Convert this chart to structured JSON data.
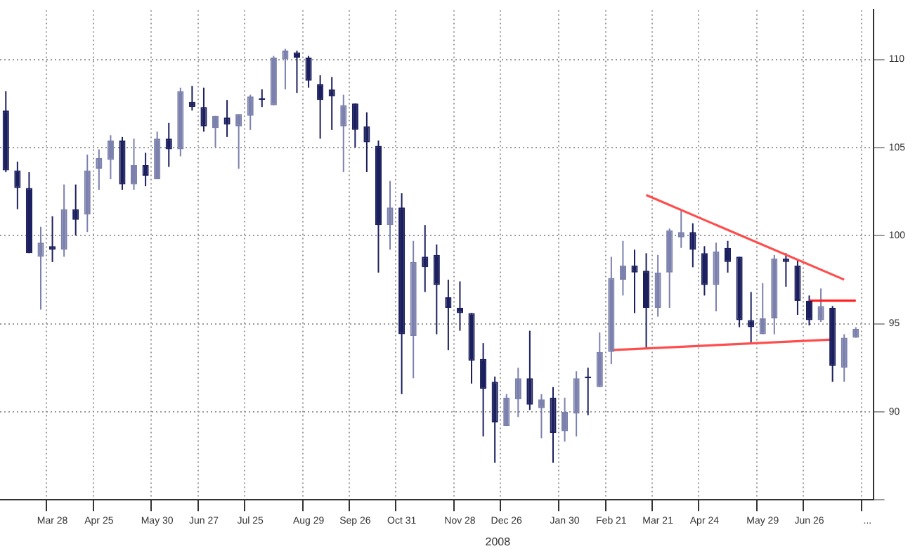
{
  "chart_data": {
    "type": "candlestick",
    "categories": [
      null,
      null,
      null,
      null,
      "Mar 28",
      null,
      null,
      null,
      "Apr 25",
      null,
      null,
      null,
      null,
      "May 30",
      null,
      null,
      null,
      "Jun 27",
      null,
      null,
      null,
      "Jul 25",
      null,
      null,
      null,
      null,
      "Aug 29",
      null,
      null,
      null,
      "Sep 26",
      null,
      null,
      null,
      "Oct 31",
      null,
      null,
      null,
      null,
      "Nov 28",
      null,
      null,
      null,
      "Dec 26",
      null,
      null,
      null,
      null,
      "Jan 30",
      null,
      null,
      null,
      "Feb 21",
      null,
      null,
      null,
      "Mar 21",
      null,
      null,
      null,
      "Apr 24",
      null,
      null,
      null,
      null,
      "May 29",
      null,
      null,
      null,
      "Jun 26",
      null,
      null,
      null,
      null,
      "..."
    ],
    "ohlc": [
      [
        107.1,
        108.2,
        103.6,
        103.7
      ],
      [
        103.7,
        104.2,
        101.5,
        102.7
      ],
      [
        102.7,
        103.6,
        99.0,
        99.0
      ],
      [
        98.8,
        100.5,
        95.8,
        99.6
      ],
      [
        99.4,
        101.1,
        98.5,
        99.2
      ],
      [
        99.2,
        102.9,
        98.8,
        101.5
      ],
      [
        101.5,
        102.9,
        100.0,
        100.9
      ],
      [
        101.2,
        104.6,
        100.2,
        103.7
      ],
      [
        103.8,
        104.9,
        102.6,
        104.4
      ],
      [
        104.3,
        105.7,
        103.2,
        105.4
      ],
      [
        105.4,
        105.6,
        102.6,
        102.9
      ],
      [
        102.9,
        105.5,
        102.6,
        104.0
      ],
      [
        104.0,
        104.7,
        102.8,
        103.4
      ],
      [
        103.2,
        105.9,
        103.2,
        105.5
      ],
      [
        105.5,
        106.4,
        103.9,
        104.9
      ],
      [
        104.9,
        108.4,
        104.5,
        108.2
      ],
      [
        107.6,
        108.5,
        107.1,
        107.3
      ],
      [
        107.3,
        108.4,
        105.9,
        106.2
      ],
      [
        106.1,
        106.8,
        105.0,
        106.8
      ],
      [
        106.7,
        107.7,
        105.6,
        106.3
      ],
      [
        106.2,
        106.9,
        103.8,
        106.9
      ],
      [
        106.8,
        108.0,
        106.0,
        107.9
      ],
      [
        107.8,
        108.3,
        107.3,
        107.7
      ],
      [
        107.4,
        110.2,
        107.4,
        110.1
      ],
      [
        110.0,
        110.6,
        108.3,
        110.5
      ],
      [
        110.4,
        110.5,
        108.1,
        110.1
      ],
      [
        110.1,
        110.2,
        108.4,
        108.8
      ],
      [
        108.6,
        109.1,
        105.5,
        107.7
      ],
      [
        108.3,
        109.0,
        106.0,
        107.9
      ],
      [
        106.2,
        108.0,
        103.6,
        107.4
      ],
      [
        107.5,
        107.5,
        105.0,
        106.0
      ],
      [
        106.2,
        107.0,
        103.6,
        105.3
      ],
      [
        105.1,
        105.4,
        97.9,
        100.6
      ],
      [
        100.6,
        103.1,
        99.2,
        101.6
      ],
      [
        101.6,
        102.4,
        91.0,
        94.4
      ],
      [
        94.3,
        99.7,
        91.9,
        98.5
      ],
      [
        98.8,
        100.6,
        96.8,
        98.2
      ],
      [
        98.9,
        99.5,
        94.4,
        97.2
      ],
      [
        96.5,
        97.5,
        93.5,
        95.9
      ],
      [
        95.9,
        97.4,
        94.6,
        95.6
      ],
      [
        95.6,
        95.6,
        91.6,
        92.9
      ],
      [
        93.0,
        93.9,
        88.6,
        91.3
      ],
      [
        91.7,
        92.0,
        87.1,
        89.4
      ],
      [
        89.2,
        91.0,
        89.2,
        90.8
      ],
      [
        90.7,
        92.5,
        89.7,
        91.9
      ],
      [
        91.9,
        94.6,
        90.1,
        90.4
      ],
      [
        90.2,
        91.0,
        88.5,
        90.7
      ],
      [
        90.8,
        91.4,
        87.1,
        88.8
      ],
      [
        88.9,
        90.8,
        88.3,
        90.0
      ],
      [
        89.9,
        92.3,
        88.6,
        91.9
      ],
      [
        92.0,
        92.5,
        89.8,
        91.9
      ],
      [
        91.4,
        94.5,
        91.4,
        93.4
      ],
      [
        93.4,
        98.8,
        92.7,
        97.6
      ],
      [
        97.5,
        99.7,
        96.6,
        98.3
      ],
      [
        98.3,
        99.2,
        95.6,
        97.9
      ],
      [
        98.0,
        99.0,
        93.6,
        95.9
      ],
      [
        95.9,
        98.9,
        95.4,
        97.9
      ],
      [
        97.9,
        100.4,
        95.9,
        100.3
      ],
      [
        99.9,
        101.4,
        99.3,
        100.2
      ],
      [
        100.2,
        100.7,
        98.2,
        99.2
      ],
      [
        99.0,
        99.4,
        96.6,
        97.2
      ],
      [
        97.2,
        99.6,
        95.7,
        99.1
      ],
      [
        99.3,
        99.7,
        97.9,
        98.5
      ],
      [
        98.8,
        98.8,
        94.8,
        95.2
      ],
      [
        95.2,
        96.8,
        93.9,
        94.8
      ],
      [
        94.4,
        97.3,
        94.4,
        95.3
      ],
      [
        95.3,
        98.9,
        94.4,
        98.7
      ],
      [
        98.7,
        99.0,
        97.1,
        98.5
      ],
      [
        98.3,
        98.6,
        95.5,
        96.3
      ],
      [
        96.3,
        96.6,
        94.9,
        95.2
      ],
      [
        95.2,
        97.0,
        95.1,
        96.0
      ],
      [
        95.9,
        96.0,
        91.7,
        92.6
      ],
      [
        92.5,
        94.4,
        91.7,
        94.2
      ],
      [
        94.2,
        94.8,
        94.2,
        94.7
      ],
      null
    ],
    "colors": [
      "#1b1f5e",
      "#1b1f5e",
      "#1b1f5e",
      "#7b80ad",
      "#1b1f5e",
      "#7b80ad",
      "#1b1f5e",
      "#7b80ad",
      "#7b80ad",
      "#7b80ad",
      "#1b1f5e",
      "#7b80ad",
      "#1b1f5e",
      "#7b80ad",
      "#1b1f5e",
      "#7b80ad",
      "#1b1f5e",
      "#1b1f5e",
      "#7b80ad",
      "#1b1f5e",
      "#7b80ad",
      "#7b80ad",
      "#1b1f5e",
      "#7b80ad",
      "#7b80ad",
      "#1b1f5e",
      "#1b1f5e",
      "#1b1f5e",
      "#1b1f5e",
      "#7b80ad",
      "#1b1f5e",
      "#1b1f5e",
      "#1b1f5e",
      "#7b80ad",
      "#1b1f5e",
      "#7b80ad",
      "#1b1f5e",
      "#1b1f5e",
      "#1b1f5e",
      "#1b1f5e",
      "#1b1f5e",
      "#1b1f5e",
      "#1b1f5e",
      "#7b80ad",
      "#7b80ad",
      "#1b1f5e",
      "#7b80ad",
      "#1b1f5e",
      "#7b80ad",
      "#7b80ad",
      "#1b1f5e",
      "#7b80ad",
      "#7b80ad",
      "#7b80ad",
      "#1b1f5e",
      "#1b1f5e",
      "#7b80ad",
      "#7b80ad",
      "#7b80ad",
      "#1b1f5e",
      "#1b1f5e",
      "#7b80ad",
      "#1b1f5e",
      "#1b1f5e",
      "#1b1f5e",
      "#7b80ad",
      "#7b80ad",
      "#1b1f5e",
      "#1b1f5e",
      "#1b1f5e",
      "#7b80ad",
      "#1b1f5e",
      "#7b80ad",
      "#7b80ad",
      null
    ],
    "series": [
      {
        "type": "line",
        "color": "#ff4d4d",
        "values": [
          null,
          null,
          null,
          null,
          null,
          null,
          null,
          null,
          null,
          null,
          null,
          null,
          null,
          null,
          null,
          null,
          null,
          null,
          null,
          null,
          null,
          null,
          null,
          null,
          null,
          null,
          null,
          null,
          null,
          null,
          null,
          null,
          null,
          null,
          null,
          null,
          null,
          null,
          null,
          null,
          null,
          null,
          null,
          null,
          null,
          null,
          null,
          null,
          null,
          null,
          null,
          null,
          null,
          null,
          null,
          102.3,
          null,
          null,
          null,
          null,
          null,
          null,
          null,
          null,
          null,
          null,
          null,
          null,
          null,
          null,
          null,
          null,
          97.5,
          null,
          null
        ]
      },
      {
        "type": "line",
        "color": "#ff4d4d",
        "values": [
          null,
          null,
          null,
          null,
          null,
          null,
          null,
          null,
          null,
          null,
          null,
          null,
          null,
          null,
          null,
          null,
          null,
          null,
          null,
          null,
          null,
          null,
          null,
          null,
          null,
          null,
          null,
          null,
          null,
          null,
          null,
          null,
          null,
          null,
          null,
          null,
          null,
          null,
          null,
          null,
          null,
          null,
          null,
          null,
          null,
          null,
          null,
          null,
          null,
          null,
          null,
          null,
          93.5,
          null,
          null,
          null,
          null,
          null,
          null,
          null,
          null,
          null,
          null,
          null,
          null,
          null,
          null,
          null,
          null,
          null,
          null,
          94.1,
          null,
          null,
          null
        ]
      },
      {
        "type": "line",
        "color": "#ff2020",
        "values": [
          null,
          null,
          null,
          null,
          null,
          null,
          null,
          null,
          null,
          null,
          null,
          null,
          null,
          null,
          null,
          null,
          null,
          null,
          null,
          null,
          null,
          null,
          null,
          null,
          null,
          null,
          null,
          null,
          null,
          null,
          null,
          null,
          null,
          null,
          null,
          null,
          null,
          null,
          null,
          null,
          null,
          null,
          null,
          null,
          null,
          null,
          null,
          null,
          null,
          null,
          null,
          null,
          null,
          null,
          null,
          null,
          null,
          null,
          null,
          null,
          null,
          null,
          null,
          null,
          null,
          null,
          null,
          null,
          null,
          96.3,
          null,
          null,
          null,
          96.3,
          null
        ]
      }
    ],
    "ylim": [
      85,
      112.8
    ],
    "yticks": [
      {
        "value": 85,
        "label": null
      },
      90,
      95,
      100,
      105,
      110
    ],
    "grid": true,
    "annotations": [
      "2008"
    ]
  }
}
